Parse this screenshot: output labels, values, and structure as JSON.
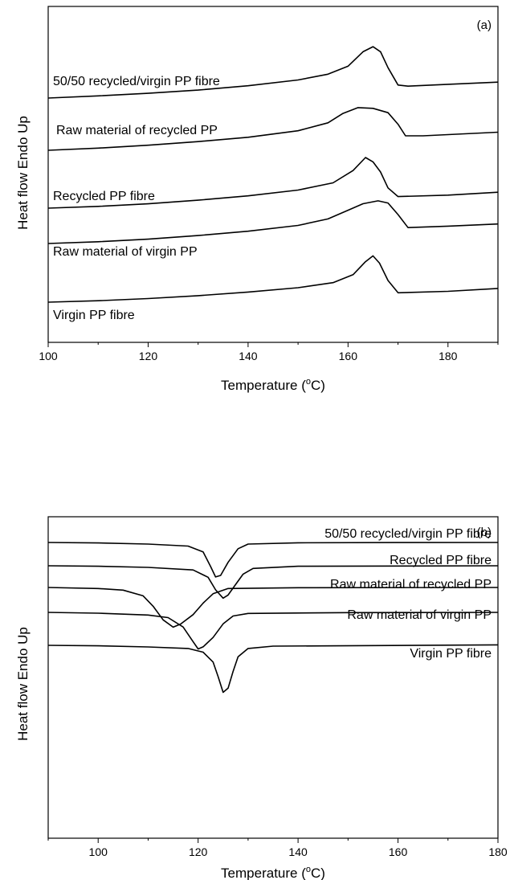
{
  "chart_data": [
    {
      "type": "line",
      "panel_label": "(a)",
      "xlabel": "Temperature (°C)",
      "ylabel": "Heat flow Endo Up",
      "xlim": [
        100,
        190
      ],
      "xticks": [
        100,
        120,
        140,
        160,
        180
      ],
      "yticks_shown": false,
      "series": [
        {
          "name": "50/50 recycled/virgin PP fibre",
          "y_unit": "arbitrary",
          "points": [
            [
              100,
              0.0
            ],
            [
              110,
              0.15
            ],
            [
              120,
              0.33
            ],
            [
              130,
              0.55
            ],
            [
              140,
              0.85
            ],
            [
              150,
              1.25
            ],
            [
              156,
              1.65
            ],
            [
              160,
              2.2
            ],
            [
              163,
              3.2
            ],
            [
              165,
              3.55
            ],
            [
              166.5,
              3.2
            ],
            [
              168,
              2.1
            ],
            [
              170,
              0.9
            ],
            [
              172,
              0.82
            ],
            [
              180,
              0.95
            ],
            [
              190,
              1.1
            ]
          ]
        },
        {
          "name": "Raw material of recycled PP",
          "y_unit": "arbitrary",
          "points": [
            [
              100,
              0.0
            ],
            [
              110,
              0.15
            ],
            [
              120,
              0.35
            ],
            [
              130,
              0.6
            ],
            [
              140,
              0.9
            ],
            [
              150,
              1.35
            ],
            [
              156,
              1.9
            ],
            [
              159,
              2.55
            ],
            [
              162,
              2.95
            ],
            [
              165,
              2.9
            ],
            [
              168,
              2.6
            ],
            [
              170,
              1.8
            ],
            [
              171.5,
              1.0
            ],
            [
              175,
              1.0
            ],
            [
              190,
              1.25
            ]
          ]
        },
        {
          "name": "Recycled PP fibre",
          "y_unit": "arbitrary",
          "points": [
            [
              100,
              0.0
            ],
            [
              110,
              0.12
            ],
            [
              120,
              0.3
            ],
            [
              130,
              0.55
            ],
            [
              140,
              0.85
            ],
            [
              150,
              1.25
            ],
            [
              157,
              1.75
            ],
            [
              161,
              2.6
            ],
            [
              163.5,
              3.5
            ],
            [
              165,
              3.2
            ],
            [
              166.5,
              2.5
            ],
            [
              168,
              1.4
            ],
            [
              170,
              0.8
            ],
            [
              180,
              0.9
            ],
            [
              190,
              1.1
            ]
          ]
        },
        {
          "name": "Raw material of virgin PP",
          "y_unit": "arbitrary",
          "points": [
            [
              100,
              0.0
            ],
            [
              110,
              0.12
            ],
            [
              120,
              0.3
            ],
            [
              130,
              0.55
            ],
            [
              140,
              0.85
            ],
            [
              150,
              1.25
            ],
            [
              156,
              1.7
            ],
            [
              160,
              2.3
            ],
            [
              163,
              2.75
            ],
            [
              166,
              2.95
            ],
            [
              168,
              2.8
            ],
            [
              170,
              2.0
            ],
            [
              172,
              1.1
            ],
            [
              180,
              1.2
            ],
            [
              190,
              1.35
            ]
          ]
        },
        {
          "name": "Virgin PP fibre",
          "y_unit": "arbitrary",
          "points": [
            [
              100,
              0.0
            ],
            [
              110,
              0.1
            ],
            [
              120,
              0.25
            ],
            [
              130,
              0.45
            ],
            [
              140,
              0.7
            ],
            [
              150,
              1.0
            ],
            [
              157,
              1.35
            ],
            [
              161,
              1.9
            ],
            [
              163.5,
              2.8
            ],
            [
              165,
              3.2
            ],
            [
              166.3,
              2.7
            ],
            [
              168,
              1.5
            ],
            [
              170,
              0.65
            ],
            [
              180,
              0.75
            ],
            [
              190,
              0.95
            ]
          ]
        }
      ]
    },
    {
      "type": "line",
      "panel_label": "(b)",
      "xlabel": "Temperature (°C)",
      "ylabel": "Heat flow Endo Up",
      "xlim": [
        90,
        180
      ],
      "xticks": [
        100,
        120,
        140,
        160,
        180
      ],
      "yticks_shown": false,
      "series": [
        {
          "name": "50/50 recycled/virgin PP fibre",
          "y_unit": "arbitrary",
          "points": [
            [
              90,
              0
            ],
            [
              100,
              -0.05
            ],
            [
              110,
              -0.15
            ],
            [
              118,
              -0.35
            ],
            [
              121,
              -0.9
            ],
            [
              122.5,
              -2.3
            ],
            [
              123.5,
              -3.3
            ],
            [
              124.5,
              -3.15
            ],
            [
              126,
              -1.9
            ],
            [
              128,
              -0.6
            ],
            [
              130,
              -0.15
            ],
            [
              140,
              -0.03
            ],
            [
              160,
              -0.01
            ],
            [
              180,
              0
            ]
          ]
        },
        {
          "name": "Recycled PP fibre",
          "y_unit": "arbitrary",
          "points": [
            [
              90,
              0
            ],
            [
              100,
              -0.05
            ],
            [
              110,
              -0.15
            ],
            [
              119,
              -0.4
            ],
            [
              122,
              -1.1
            ],
            [
              123.5,
              -2.3
            ],
            [
              125,
              -3.1
            ],
            [
              126,
              -2.8
            ],
            [
              127.5,
              -1.8
            ],
            [
              129,
              -0.8
            ],
            [
              131,
              -0.25
            ],
            [
              140,
              -0.05
            ],
            [
              180,
              0
            ]
          ]
        },
        {
          "name": "Raw material of recycled PP",
          "y_unit": "arbitrary",
          "points": [
            [
              90,
              0
            ],
            [
              100,
              -0.1
            ],
            [
              105,
              -0.25
            ],
            [
              109,
              -0.8
            ],
            [
              111,
              -1.8
            ],
            [
              113,
              -3.1
            ],
            [
              115,
              -3.8
            ],
            [
              116.5,
              -3.5
            ],
            [
              119,
              -2.6
            ],
            [
              121,
              -1.5
            ],
            [
              123,
              -0.6
            ],
            [
              126,
              -0.1
            ],
            [
              140,
              -0.02
            ],
            [
              180,
              0
            ]
          ]
        },
        {
          "name": "Raw material of virgin PP",
          "y_unit": "arbitrary",
          "points": [
            [
              90,
              0
            ],
            [
              100,
              -0.08
            ],
            [
              110,
              -0.25
            ],
            [
              114,
              -0.5
            ],
            [
              117,
              -1.4
            ],
            [
              119,
              -2.8
            ],
            [
              120,
              -3.5
            ],
            [
              121,
              -3.3
            ],
            [
              123,
              -2.4
            ],
            [
              125,
              -1.1
            ],
            [
              127,
              -0.35
            ],
            [
              130,
              -0.1
            ],
            [
              150,
              -0.02
            ],
            [
              180,
              0
            ]
          ]
        },
        {
          "name": "Virgin PP fibre",
          "y_unit": "arbitrary",
          "points": [
            [
              90,
              0
            ],
            [
              100,
              -0.05
            ],
            [
              110,
              -0.15
            ],
            [
              118,
              -0.3
            ],
            [
              121,
              -0.65
            ],
            [
              123,
              -1.6
            ],
            [
              124,
              -3.0
            ],
            [
              125,
              -4.5
            ],
            [
              126,
              -4.1
            ],
            [
              127,
              -2.5
            ],
            [
              128,
              -1.1
            ],
            [
              130,
              -0.3
            ],
            [
              135,
              -0.08
            ],
            [
              180,
              0.05
            ]
          ]
        }
      ]
    }
  ]
}
